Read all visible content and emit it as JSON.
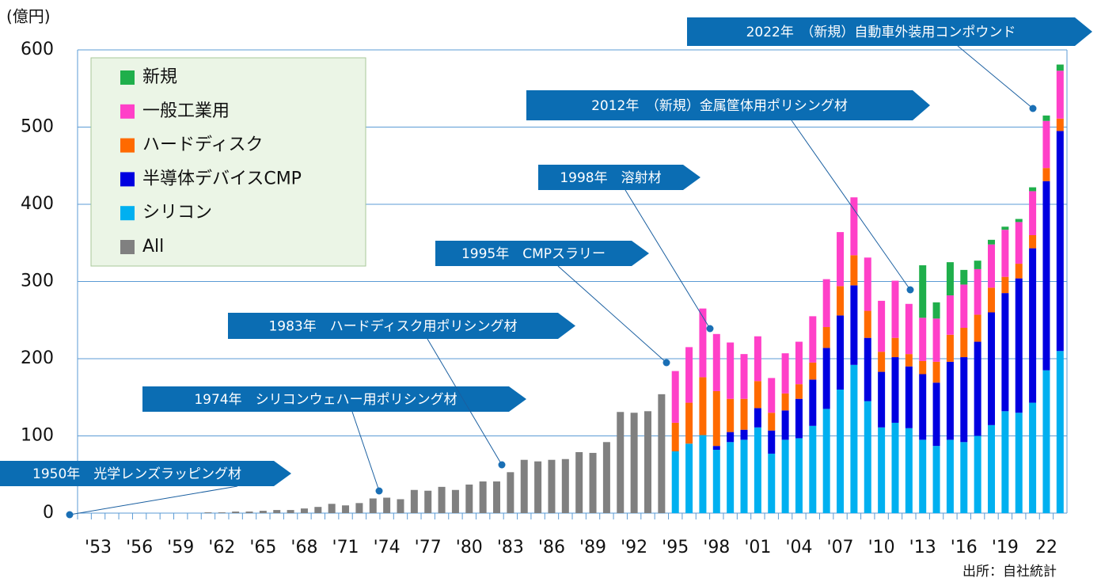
{
  "chart_data": {
    "type": "stacked_bar",
    "ylabel": "(億円)",
    "source": "出所：自社統計",
    "categories": [
      null,
      "'53",
      null,
      null,
      "'56",
      null,
      null,
      "'59",
      null,
      null,
      "'62",
      null,
      null,
      "'65",
      null,
      null,
      "'68",
      null,
      null,
      "'71",
      null,
      null,
      "'74",
      null,
      null,
      "'77",
      null,
      null,
      "'80",
      null,
      null,
      "'83",
      null,
      null,
      "'86",
      null,
      null,
      "'89",
      null,
      null,
      "'92",
      null,
      null,
      "'95",
      null,
      null,
      "'98",
      null,
      null,
      "'01",
      null,
      null,
      "'04",
      null,
      null,
      "'07",
      null,
      null,
      "'10",
      null,
      null,
      "'13",
      null,
      null,
      "'16",
      null,
      null,
      "'19",
      null,
      null,
      "22",
      null
    ],
    "series": [
      {
        "name": "新規",
        "color": "#1faf4b",
        "values": [
          null,
          null,
          null,
          null,
          null,
          null,
          null,
          null,
          null,
          null,
          null,
          null,
          null,
          null,
          null,
          null,
          null,
          null,
          null,
          null,
          null,
          null,
          null,
          null,
          null,
          null,
          null,
          null,
          null,
          null,
          null,
          null,
          null,
          null,
          null,
          null,
          null,
          null,
          null,
          null,
          null,
          null,
          null,
          null,
          null,
          null,
          null,
          null,
          null,
          null,
          null,
          null,
          null,
          null,
          null,
          null,
          null,
          null,
          null,
          null,
          null,
          68,
          21,
          43,
          19,
          11,
          6,
          4,
          4,
          5,
          7,
          8
        ]
      },
      {
        "name": "一般工業用",
        "color": "#ff40c8",
        "values": [
          null,
          null,
          null,
          null,
          null,
          null,
          null,
          null,
          null,
          null,
          null,
          null,
          null,
          null,
          null,
          null,
          null,
          null,
          null,
          null,
          null,
          null,
          null,
          null,
          null,
          null,
          null,
          null,
          null,
          null,
          null,
          null,
          null,
          null,
          null,
          null,
          null,
          null,
          null,
          null,
          null,
          null,
          null,
          67,
          72,
          89,
          74,
          73,
          58,
          58,
          45,
          52,
          55,
          60,
          62,
          70,
          75,
          69,
          66,
          74,
          65,
          56,
          56,
          51,
          56,
          59,
          56,
          61,
          54,
          57,
          61,
          62
        ]
      },
      {
        "name": "ハードディスク",
        "color": "#ff6a00",
        "values": [
          null,
          null,
          null,
          null,
          null,
          null,
          null,
          null,
          null,
          null,
          null,
          null,
          null,
          null,
          null,
          null,
          null,
          null,
          null,
          null,
          null,
          null,
          null,
          null,
          null,
          null,
          null,
          null,
          null,
          null,
          null,
          null,
          null,
          null,
          null,
          null,
          null,
          null,
          null,
          null,
          null,
          null,
          null,
          37,
          53,
          75,
          71,
          43,
          40,
          35,
          23,
          22,
          19,
          22,
          27,
          38,
          39,
          35,
          26,
          25,
          16,
          17,
          27,
          35,
          38,
          35,
          32,
          21,
          19,
          17,
          17,
          16
        ]
      },
      {
        "name": "半導体デバイスCMP",
        "color": "#0000e0",
        "values": [
          null,
          null,
          null,
          null,
          null,
          null,
          null,
          null,
          null,
          null,
          null,
          null,
          null,
          null,
          null,
          null,
          null,
          null,
          null,
          null,
          null,
          null,
          null,
          null,
          null,
          null,
          null,
          null,
          null,
          null,
          null,
          null,
          null,
          null,
          null,
          null,
          null,
          null,
          null,
          null,
          null,
          null,
          null,
          null,
          null,
          null,
          5,
          13,
          13,
          25,
          30,
          38,
          51,
          60,
          79,
          96,
          103,
          82,
          72,
          85,
          80,
          85,
          82,
          101,
          110,
          122,
          146,
          153,
          174,
          200,
          245,
          285
        ]
      },
      {
        "name": "シリコン",
        "color": "#00b0f0",
        "values": [
          null,
          null,
          null,
          null,
          null,
          null,
          null,
          null,
          null,
          null,
          null,
          null,
          null,
          null,
          null,
          null,
          null,
          null,
          null,
          null,
          null,
          null,
          null,
          null,
          null,
          null,
          null,
          null,
          null,
          null,
          null,
          null,
          null,
          null,
          null,
          null,
          null,
          null,
          null,
          null,
          null,
          null,
          null,
          80,
          90,
          101,
          82,
          92,
          95,
          111,
          77,
          95,
          97,
          113,
          135,
          160,
          192,
          145,
          111,
          117,
          110,
          95,
          87,
          95,
          92,
          100,
          114,
          132,
          130,
          143,
          185,
          210
        ]
      },
      {
        "name": "All",
        "color": "#808080",
        "values": [
          0,
          0,
          0,
          0,
          0,
          0,
          0,
          0,
          0,
          1,
          1,
          2,
          2,
          3,
          4,
          4,
          6,
          8,
          12,
          10,
          13,
          19,
          20,
          18,
          30,
          29,
          34,
          30,
          37,
          41,
          41,
          53,
          69,
          67,
          69,
          70,
          79,
          78,
          92,
          131,
          130,
          132,
          154,
          null,
          null,
          null,
          null,
          null,
          null,
          null,
          null,
          null,
          null,
          null,
          null,
          null,
          null,
          null,
          null,
          null,
          null,
          null,
          null,
          null,
          null,
          null,
          null,
          null,
          null,
          null,
          null,
          null
        ]
      }
    ],
    "ylim": [
      0,
      600
    ],
    "yticks": [
      0,
      100,
      200,
      300,
      400,
      500,
      600
    ],
    "grid": true,
    "annotations": [
      "1950年　光学レンズラッピング材",
      "1974年　シリコンウェハー用ポリシング材",
      "1983年　ハードディスク用ポリシング材",
      "1995年　CMPスラリー",
      "1998年　溶射材",
      "2012年　（新規）金属筐体用ポリシング材",
      "2022年　（新規）自動車外装用コンポウンド"
    ]
  }
}
